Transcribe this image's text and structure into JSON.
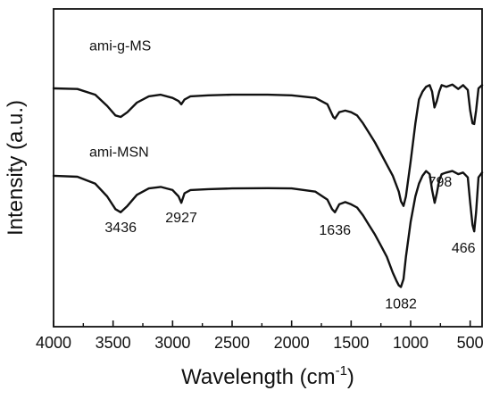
{
  "chart_data": {
    "type": "line",
    "title": "",
    "xlabel": "Wavelength (cm",
    "xlabel_sup": "-1",
    "xlabel_end": ")",
    "ylabel": "Intensity (a.u.)",
    "xlim": [
      4000,
      400
    ],
    "x_reversed": true,
    "ylim": [
      0,
      10
    ],
    "x_ticks": [
      4000,
      3500,
      3000,
      2500,
      2000,
      1500,
      1000,
      500
    ],
    "x_tick_labels": [
      "4000",
      "3500",
      "3000",
      "2500",
      "2000",
      "1500",
      "1000",
      "500"
    ],
    "y_ticks_shown": false,
    "grid": false,
    "legend": "none",
    "series": [
      {
        "name": "ami-g-MS",
        "x": [
          4000,
          3800,
          3650,
          3550,
          3480,
          3436,
          3380,
          3300,
          3200,
          3100,
          3000,
          2950,
          2927,
          2900,
          2850,
          2700,
          2500,
          2200,
          2000,
          1800,
          1700,
          1650,
          1636,
          1600,
          1550,
          1500,
          1450,
          1400,
          1350,
          1300,
          1250,
          1200,
          1150,
          1100,
          1082,
          1060,
          1040,
          1000,
          960,
          930,
          900,
          870,
          840,
          820,
          800,
          780,
          760,
          740,
          700,
          650,
          600,
          560,
          520,
          500,
          480,
          466,
          450,
          430,
          400
        ],
        "y": [
          7.5,
          7.48,
          7.3,
          6.95,
          6.65,
          6.6,
          6.75,
          7.05,
          7.25,
          7.3,
          7.2,
          7.1,
          7.0,
          7.15,
          7.25,
          7.28,
          7.3,
          7.3,
          7.28,
          7.2,
          7.0,
          6.6,
          6.55,
          6.75,
          6.8,
          6.75,
          6.65,
          6.4,
          6.1,
          5.8,
          5.45,
          5.1,
          4.75,
          4.25,
          3.95,
          3.8,
          4.1,
          5.2,
          6.4,
          7.15,
          7.4,
          7.55,
          7.6,
          7.4,
          6.9,
          7.1,
          7.4,
          7.6,
          7.55,
          7.62,
          7.48,
          7.6,
          7.45,
          6.8,
          6.4,
          6.38,
          6.8,
          7.5,
          7.6
        ]
      },
      {
        "name": "ami-MSN",
        "x": [
          4000,
          3800,
          3650,
          3550,
          3480,
          3436,
          3380,
          3300,
          3200,
          3100,
          3000,
          2950,
          2927,
          2900,
          2850,
          2700,
          2500,
          2200,
          2000,
          1800,
          1700,
          1660,
          1636,
          1600,
          1550,
          1500,
          1450,
          1400,
          1350,
          1300,
          1250,
          1200,
          1150,
          1120,
          1100,
          1082,
          1060,
          1040,
          1000,
          960,
          930,
          900,
          870,
          840,
          820,
          798,
          780,
          760,
          740,
          700,
          650,
          600,
          560,
          520,
          500,
          480,
          466,
          450,
          430,
          400
        ],
        "y": [
          4.75,
          4.72,
          4.5,
          4.1,
          3.7,
          3.6,
          3.8,
          4.15,
          4.35,
          4.4,
          4.3,
          4.1,
          3.9,
          4.2,
          4.3,
          4.33,
          4.35,
          4.36,
          4.35,
          4.25,
          4.0,
          3.7,
          3.6,
          3.85,
          3.92,
          3.85,
          3.75,
          3.5,
          3.2,
          2.9,
          2.55,
          2.2,
          1.7,
          1.45,
          1.3,
          1.25,
          1.5,
          2.2,
          3.3,
          4.1,
          4.5,
          4.75,
          4.9,
          4.8,
          4.3,
          3.9,
          4.2,
          4.6,
          4.8,
          4.85,
          4.9,
          4.8,
          4.85,
          4.7,
          3.9,
          3.2,
          3.0,
          3.6,
          4.7,
          4.85
        ]
      }
    ],
    "annotations": [
      {
        "text": "3436",
        "x": 3436,
        "y": 3.6
      },
      {
        "text": "2927",
        "x": 2927,
        "y": 3.9
      },
      {
        "text": "1636",
        "x": 1636,
        "y": 3.6
      },
      {
        "text": "1082",
        "x": 1082,
        "y": 1.25
      },
      {
        "text": "798",
        "x": 798,
        "y": 3.9
      },
      {
        "text": "466",
        "x": 466,
        "y": 3.0
      }
    ]
  }
}
